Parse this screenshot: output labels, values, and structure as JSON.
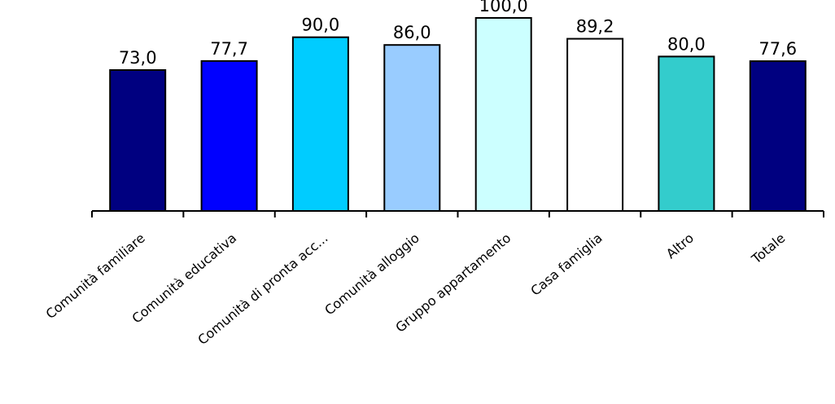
{
  "chart_data": {
    "type": "bar",
    "categories": [
      "Comunità familiare",
      "Comunità educativa",
      "Comunità di pronta acc...",
      "Comunità alloggio",
      "Gruppo appartamento",
      "Casa famiglia",
      "Altro",
      "Totale"
    ],
    "values": [
      73.0,
      77.7,
      90.0,
      86.0,
      100.0,
      89.2,
      80.0,
      77.6
    ],
    "value_labels": [
      "73,0",
      "77,7",
      "90,0",
      "86,0",
      "100,0",
      "89,2",
      "80,0",
      "77,6"
    ],
    "colors": [
      "#000080",
      "#0000FF",
      "#00CCFF",
      "#99CCFF",
      "#CCFFFF",
      "#FFFFFF",
      "#33CCCC",
      "#000080"
    ],
    "ylim": [
      0,
      100
    ],
    "grid": false,
    "legend": "none"
  }
}
